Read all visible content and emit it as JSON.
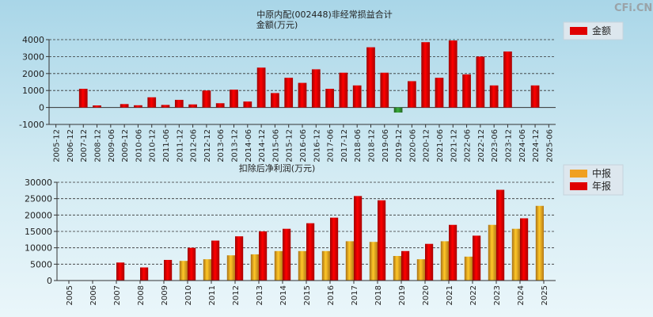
{
  "watermark": "CFi.CN",
  "chart_data": [
    {
      "type": "bar",
      "title": "中原内配(002448)非经常损益合计",
      "ylabel": "金额(万元)",
      "ylim": [
        -1000,
        4000
      ],
      "yticks": [
        -1000,
        0,
        1000,
        2000,
        3000,
        4000
      ],
      "legend": [
        {
          "name": "金额",
          "color": "#e00000"
        }
      ],
      "positive_color": "#e00000",
      "negative_color": "#2e8b2e",
      "categories": [
        "2005-12",
        "2006-12",
        "2007-12",
        "2008-12",
        "2009-06",
        "2009-12",
        "2010-06",
        "2010-12",
        "2011-06",
        "2011-12",
        "2012-06",
        "2012-12",
        "2013-06",
        "2013-12",
        "2014-06",
        "2014-12",
        "2015-06",
        "2015-12",
        "2016-06",
        "2016-12",
        "2017-06",
        "2017-12",
        "2018-06",
        "2018-12",
        "2019-06",
        "2019-12",
        "2020-06",
        "2020-12",
        "2021-06",
        "2021-12",
        "2022-06",
        "2022-12",
        "2023-06",
        "2023-12",
        "2024-06",
        "2024-12",
        "2025-06"
      ],
      "values": [
        null,
        null,
        1100,
        120,
        null,
        200,
        130,
        600,
        150,
        450,
        180,
        1000,
        250,
        1050,
        350,
        2350,
        850,
        1750,
        1450,
        2250,
        1100,
        2050,
        1300,
        3550,
        2050,
        -300,
        1550,
        3850,
        1750,
        3950,
        1950,
        3000,
        1300,
        3300,
        null,
        1300,
        null
      ]
    },
    {
      "type": "bar",
      "title": "扣除后净利润(万元)",
      "ylim": [
        0,
        30000
      ],
      "yticks": [
        0,
        5000,
        10000,
        15000,
        20000,
        25000,
        30000
      ],
      "legend": [
        {
          "name": "中报",
          "color": "#f0a020"
        },
        {
          "name": "年报",
          "color": "#e00000"
        }
      ],
      "categories": [
        "2005",
        "2006",
        "2007",
        "2008",
        "2009",
        "2010",
        "2011",
        "2012",
        "2013",
        "2014",
        "2015",
        "2016",
        "2017",
        "2018",
        "2019",
        "2020",
        "2021",
        "2022",
        "2023",
        "2024",
        "2025"
      ],
      "series": [
        {
          "name": "中报",
          "values": [
            null,
            null,
            null,
            null,
            null,
            6000,
            6500,
            7700,
            8000,
            9000,
            9000,
            9000,
            12000,
            11800,
            7500,
            6500,
            12000,
            7300,
            17000,
            15800,
            22800
          ]
        },
        {
          "name": "年报",
          "values": [
            null,
            null,
            5500,
            4000,
            6300,
            10000,
            12200,
            13500,
            15000,
            15800,
            17500,
            19200,
            25800,
            24500,
            9000,
            11200,
            17000,
            13700,
            27700,
            19000,
            null
          ]
        }
      ]
    }
  ]
}
